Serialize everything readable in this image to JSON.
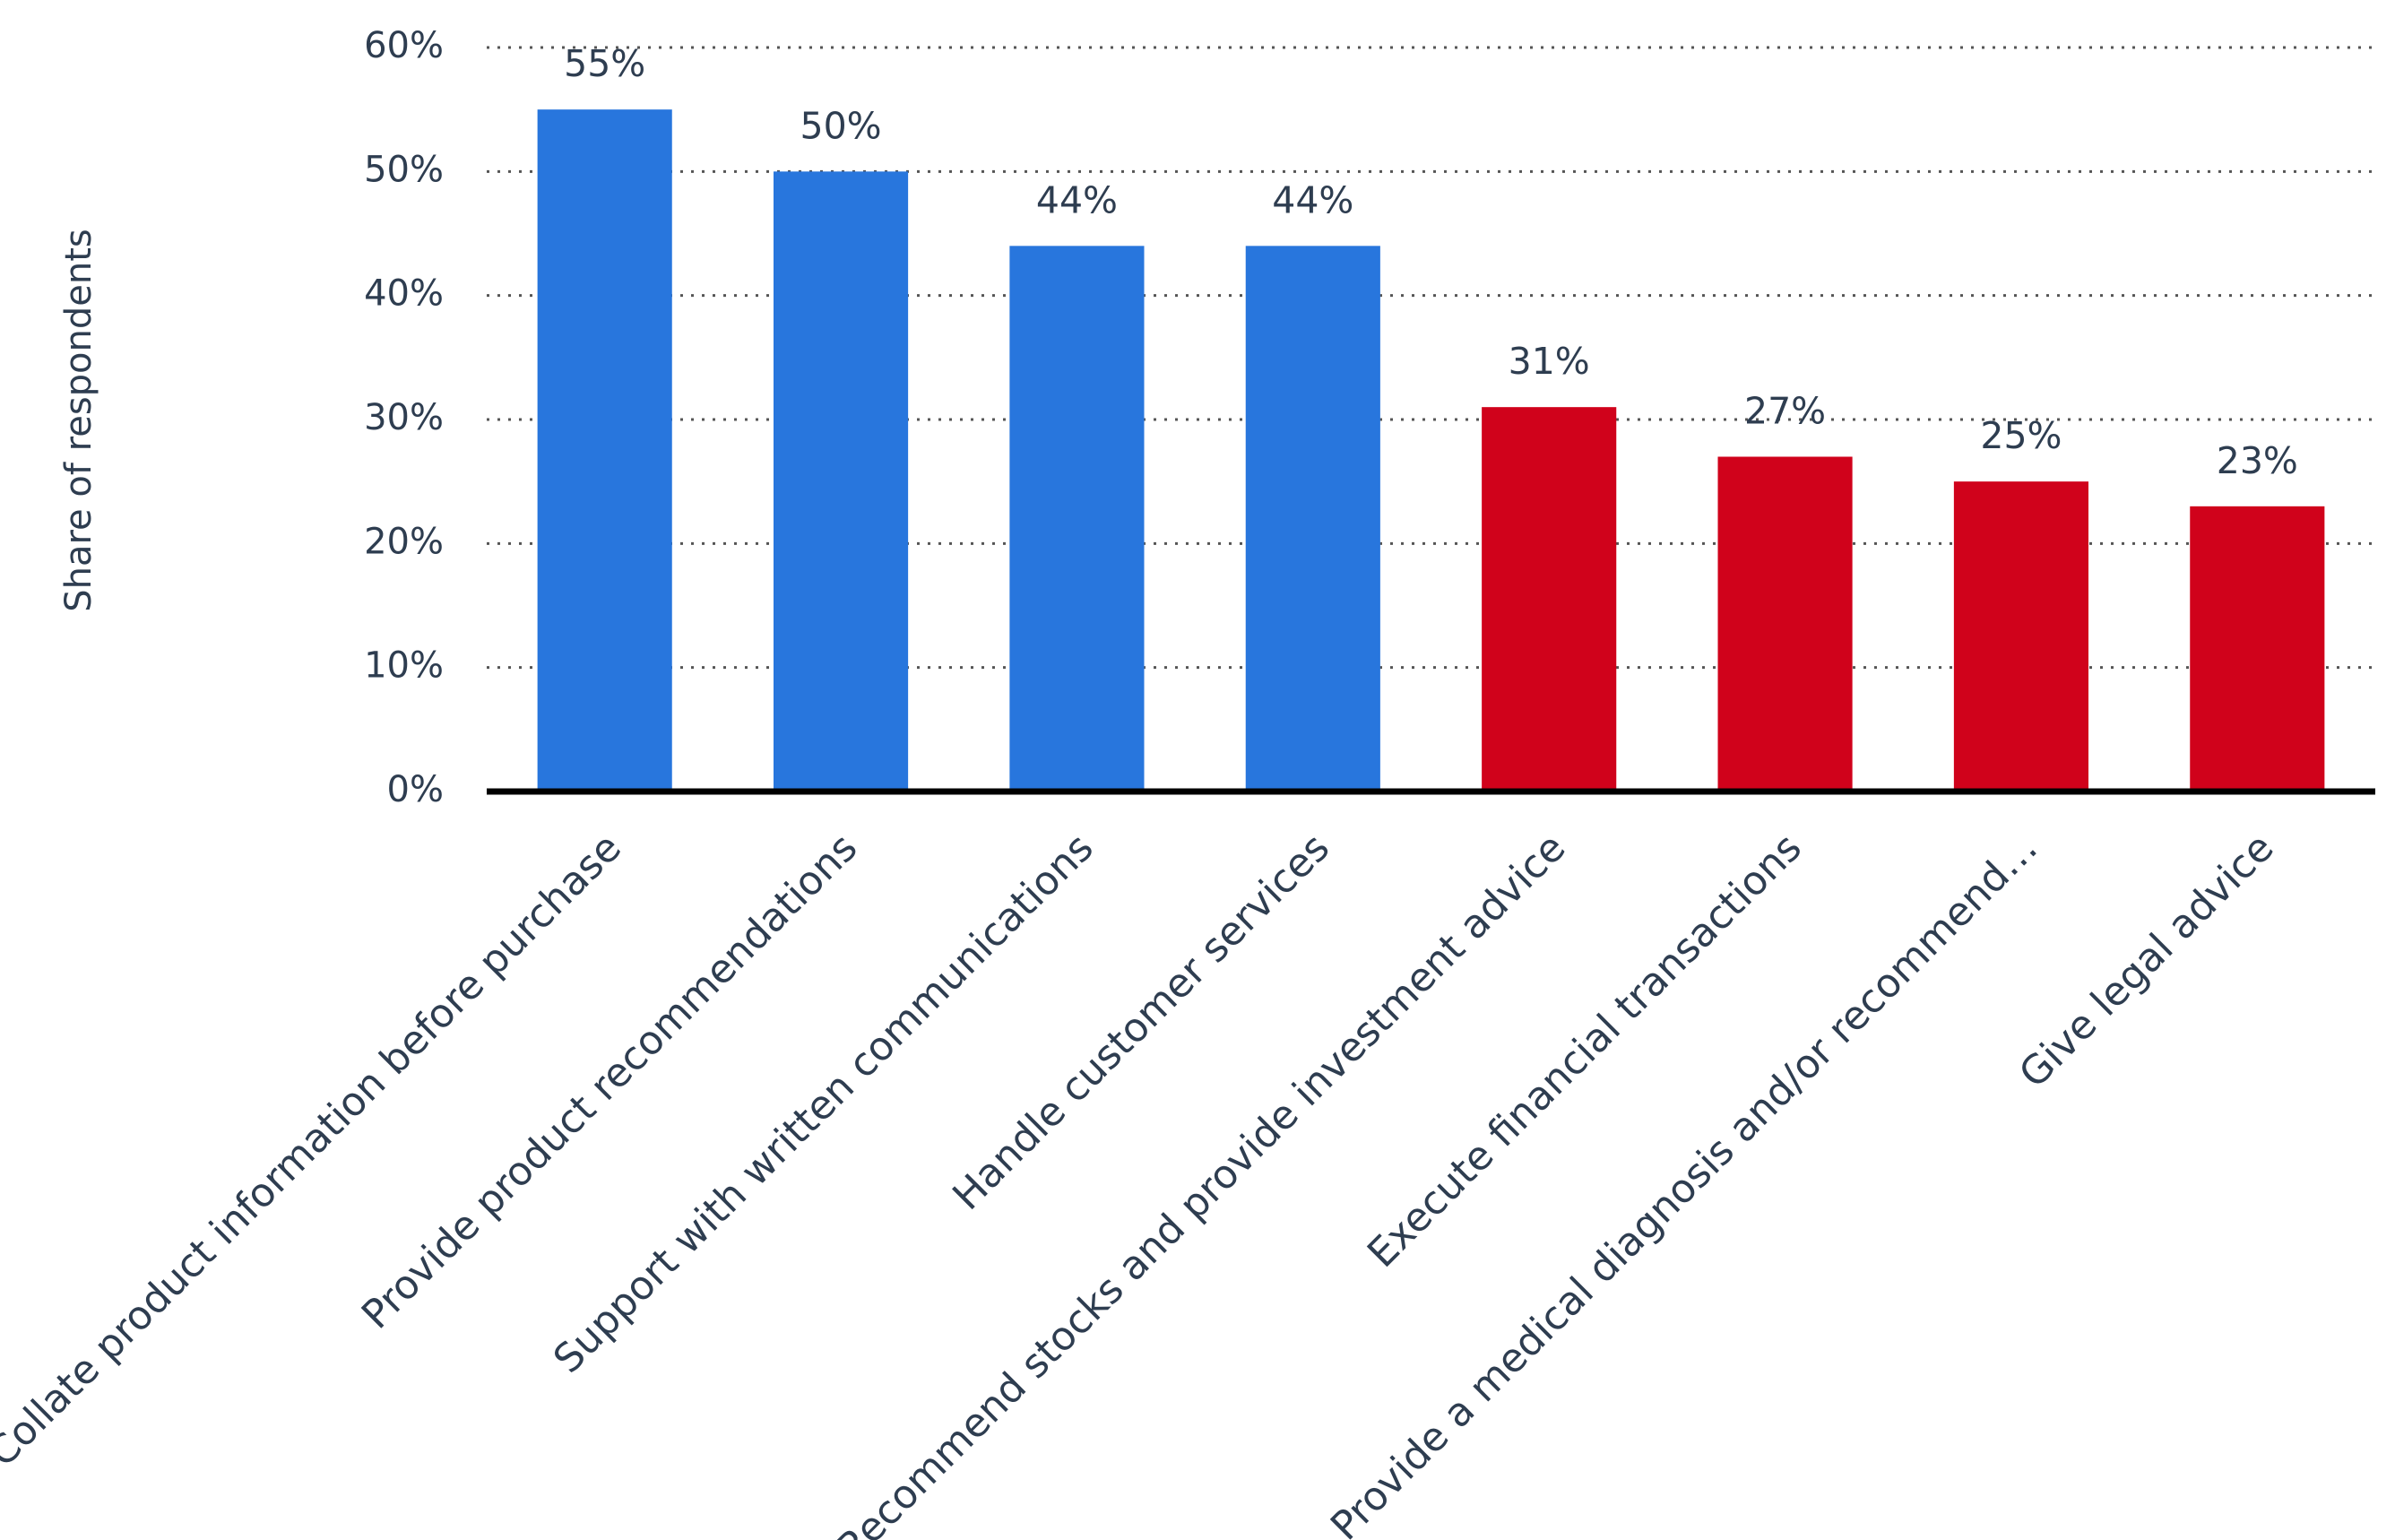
{
  "chart_data": {
    "type": "bar",
    "y_label": "Share of respondents",
    "categories": [
      "Collate product information before purchase",
      "Provide product recommendations",
      "Support with written communications",
      "Handle customer services",
      "Recommend stocks and provide investment advice",
      "Execute financial transactions",
      "Provide a medical diagnosis and/or recommend…",
      "Give legal advice"
    ],
    "values": [
      55,
      50,
      44,
      44,
      31,
      27,
      25,
      23
    ],
    "value_labels": [
      "55%",
      "50%",
      "44%",
      "44%",
      "31%",
      "27%",
      "25%",
      "23%"
    ],
    "colors": [
      "#2876dd",
      "#2876dd",
      "#2876dd",
      "#2876dd",
      "#d0021b",
      "#d0021b",
      "#d0021b",
      "#d0021b"
    ],
    "ylim": [
      0,
      60
    ],
    "yticks": [
      {
        "value": 0,
        "label": "0%"
      },
      {
        "value": 10,
        "label": "10%"
      },
      {
        "value": 20,
        "label": "20%"
      },
      {
        "value": 30,
        "label": "30%"
      },
      {
        "value": 40,
        "label": "40%"
      },
      {
        "value": 50,
        "label": "50%"
      },
      {
        "value": 60,
        "label": "60%"
      }
    ],
    "grid": true
  }
}
